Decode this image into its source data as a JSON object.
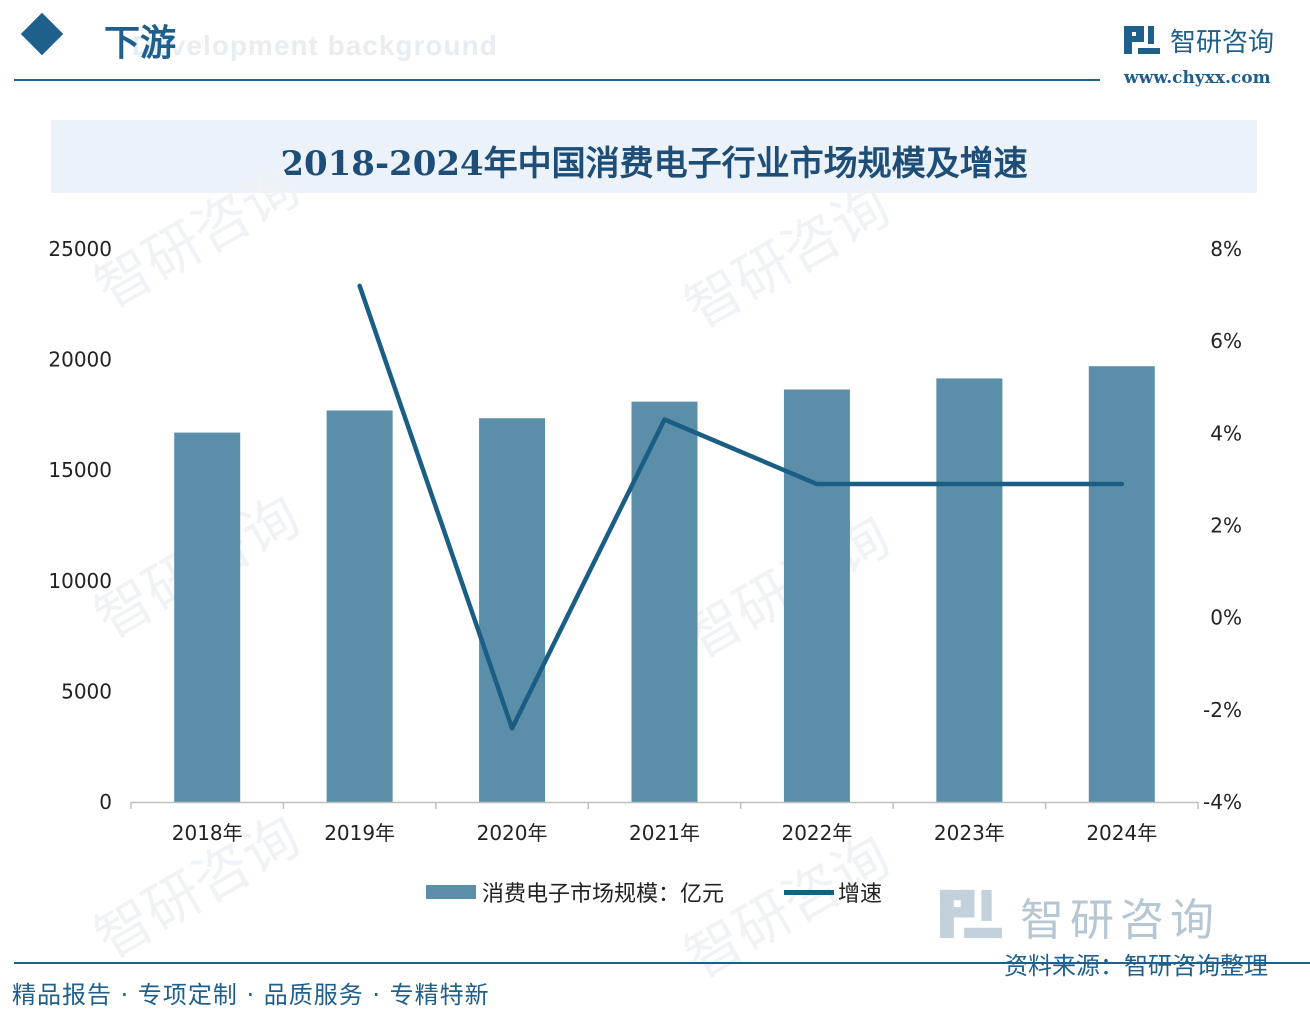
{
  "header": {
    "section_title": "下游",
    "section_subtitle": "Development background",
    "brand_name": "智研咨询",
    "brand_url": "www.chyxx.com"
  },
  "chart_data": {
    "type": "bar",
    "title": "2018-2024年中国消费电子行业市场规模及增速",
    "categories": [
      "2018年",
      "2019年",
      "2020年",
      "2021年",
      "2022年",
      "2023年",
      "2024年"
    ],
    "series": [
      {
        "name": "消费电子市场规模：亿元",
        "type": "bar",
        "axis": "left",
        "values": [
          16700,
          17700,
          17350,
          18100,
          18650,
          19150,
          19700
        ]
      },
      {
        "name": "增速",
        "type": "line",
        "axis": "right",
        "unit": "%",
        "values": [
          null,
          7.2,
          -2.4,
          4.3,
          2.9,
          2.9,
          2.9
        ]
      }
    ],
    "y_left": {
      "ylim": [
        0,
        25000
      ],
      "ticks": [
        "0",
        "5000",
        "10000",
        "15000",
        "20000",
        "25000"
      ]
    },
    "y_right": {
      "ylim": [
        -4,
        8
      ],
      "ticks": [
        "-4%",
        "-2%",
        "0%",
        "2%",
        "4%",
        "6%",
        "8%"
      ]
    },
    "legend_position": "bottom",
    "grid": false,
    "colors": {
      "bar": "#5b8ea9",
      "line": "#1b5e85"
    }
  },
  "footer": {
    "brand_name": "智研咨询",
    "source": "资料来源：智研咨询整理",
    "tagline": "精品报告 · 专项定制 · 品质服务 · 专精特新"
  }
}
